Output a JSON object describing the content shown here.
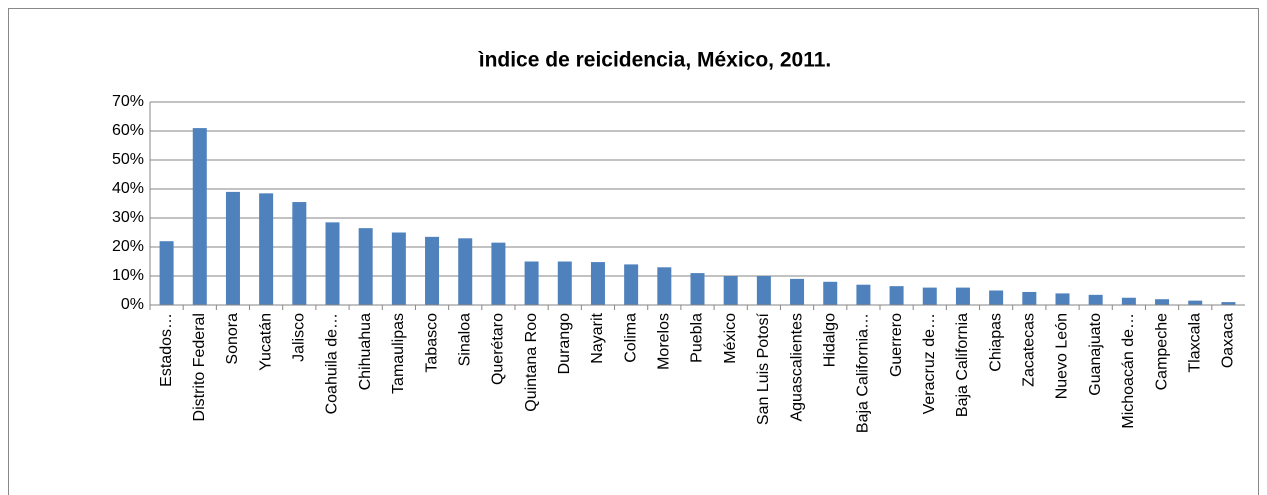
{
  "chart_data": {
    "type": "bar",
    "title": "ìndice de reicidencia, México, 2011.",
    "categories": [
      "Estados…",
      "Distrito Federal",
      "Sonora",
      "Yucatán",
      "Jalisco",
      "Coahuila de…",
      "Chihuahua",
      "Tamaulipas",
      "Tabasco",
      "Sinaloa",
      "Querétaro",
      "Quintana Roo",
      "Durango",
      "Nayarit",
      "Colima",
      "Morelos",
      "Puebla",
      "México",
      "San Luis Potosí",
      "Aguascalientes",
      "Hidalgo",
      "Baja California…",
      "Guerrero",
      "Veracruz de…",
      "Baja California",
      "Chiapas",
      "Zacatecas",
      "Nuevo León",
      "Guanajuato",
      "Michoacán de…",
      "Campeche",
      "Tlaxcala",
      "Oaxaca"
    ],
    "values": [
      22,
      61,
      39,
      38.5,
      35.5,
      28.5,
      26.5,
      25,
      23.5,
      23,
      21.5,
      15,
      15,
      14.8,
      14,
      13,
      11,
      10,
      10,
      9,
      8,
      7,
      6.5,
      6,
      6,
      5,
      4.5,
      4,
      3.5,
      2.5,
      2,
      1.5,
      1
    ],
    "color": "#4f81bd",
    "ylim": [
      0,
      70
    ],
    "yticks": [
      {
        "value": 0,
        "label": "0%"
      },
      {
        "value": 10,
        "label": "10%"
      },
      {
        "value": 20,
        "label": "20%"
      },
      {
        "value": 30,
        "label": "30%"
      },
      {
        "value": 40,
        "label": "40%"
      },
      {
        "value": 50,
        "label": "50%"
      },
      {
        "value": 60,
        "label": "60%"
      },
      {
        "value": 70,
        "label": "70%"
      }
    ],
    "grid": true
  }
}
